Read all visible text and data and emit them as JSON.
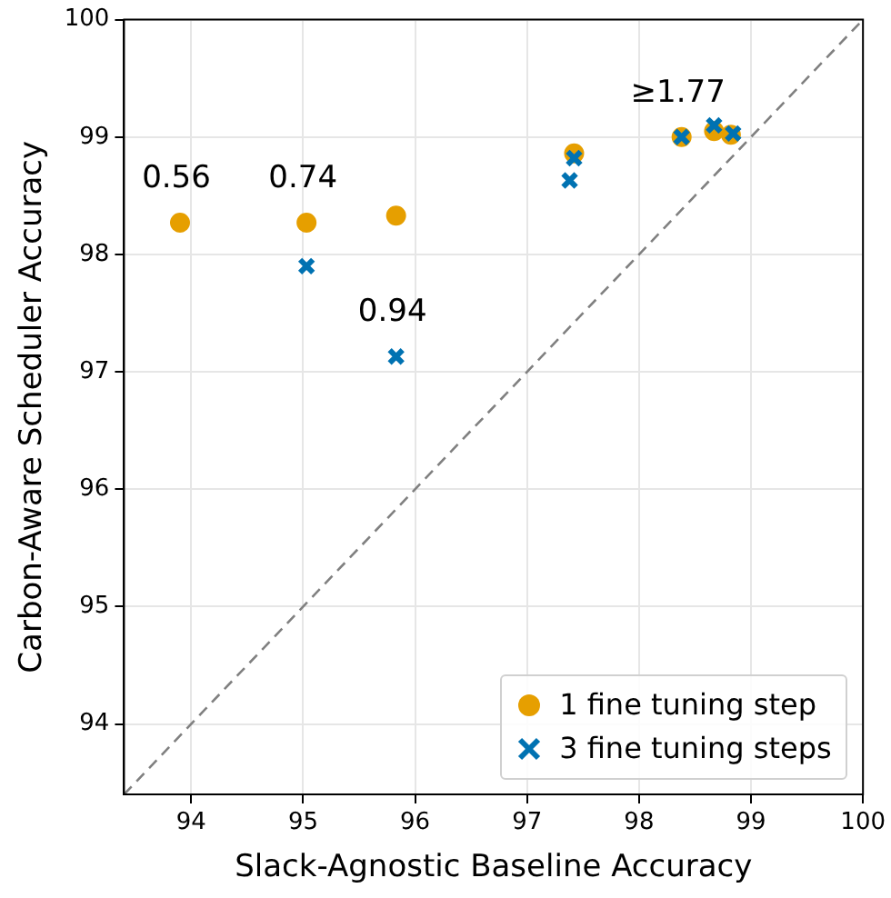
{
  "chart_data": {
    "type": "scatter",
    "xlabel": "Slack-Agnostic Baseline Accuracy",
    "ylabel": "Carbon-Aware Scheduler Accuracy",
    "xlim": [
      93.4,
      100
    ],
    "ylim": [
      93.4,
      100
    ],
    "xticks": [
      94,
      95,
      96,
      97,
      98,
      99,
      100
    ],
    "yticks": [
      94,
      95,
      96,
      97,
      98,
      99,
      100
    ],
    "grid": true,
    "legend": "bottom right",
    "series": [
      {
        "name": "1 fine tuning step",
        "color": "#e69f00",
        "marker": "circle",
        "x": [
          93.9,
          95.03,
          95.83,
          97.42,
          98.38,
          98.67,
          98.82
        ],
        "values": [
          98.27,
          98.27,
          98.33,
          98.86,
          99.0,
          99.05,
          99.02
        ]
      },
      {
        "name": "3 fine tuning steps",
        "color": "#0072b2",
        "marker": "cross",
        "x": [
          95.03,
          95.83,
          97.38,
          97.42,
          98.38,
          98.67,
          98.84
        ],
        "values": [
          97.9,
          97.13,
          98.63,
          98.82,
          99.0,
          99.1,
          99.03
        ]
      },
      {
        "type": "line",
        "color": "#808080",
        "line_style": "dashed",
        "marker": "none",
        "x": [
          93.4,
          100
        ],
        "values": [
          93.4,
          100
        ]
      }
    ],
    "annotations": [
      {
        "text": "0.56",
        "x": 93.9,
        "y": 98.27
      },
      {
        "text": "0.74",
        "x": 95.03,
        "y": 98.27
      },
      {
        "text": "0.94",
        "x": 95.83,
        "y": 97.13
      },
      {
        "text": "≥1.77",
        "x": 98.38,
        "y": 99.0
      }
    ]
  }
}
